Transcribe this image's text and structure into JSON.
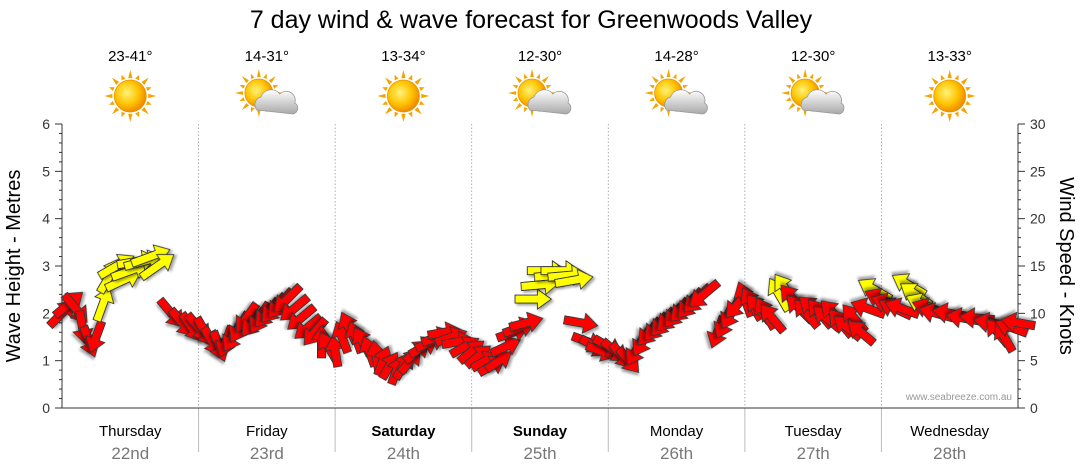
{
  "chart_data": {
    "type": "line",
    "title": "7 day wind & wave forecast for Greenwoods Valley",
    "ylabel_left": "Wave Height - Metres",
    "ylabel_right": "Wind Speed - Knots",
    "ylim_left": [
      0,
      6
    ],
    "ylim_right": [
      0,
      30
    ],
    "yticks_left": [
      "0",
      "1",
      "2",
      "3",
      "4",
      "5",
      "6"
    ],
    "yticks_right": [
      "0",
      "5",
      "10",
      "15",
      "20",
      "25",
      "30"
    ],
    "grid": true,
    "watermark": "www.seabreeze.com.au",
    "days": [
      {
        "name": "Thursday",
        "date": "22nd",
        "temp": "23-41°",
        "weather": "sun-icon",
        "bold": false
      },
      {
        "name": "Friday",
        "date": "23rd",
        "temp": "14-31°",
        "weather": "sun-cloud-icon",
        "bold": false
      },
      {
        "name": "Saturday",
        "date": "24th",
        "temp": "13-34°",
        "weather": "sun-icon",
        "bold": true
      },
      {
        "name": "Sunday",
        "date": "25th",
        "temp": "12-30°",
        "weather": "sun-cloud-icon",
        "bold": true
      },
      {
        "name": "Monday",
        "date": "26th",
        "temp": "14-28°",
        "weather": "sun-cloud-icon",
        "bold": false
      },
      {
        "name": "Tuesday",
        "date": "27th",
        "temp": "12-30°",
        "weather": "sun-cloud-icon",
        "bold": false
      },
      {
        "name": "Wednesday",
        "date": "28th",
        "temp": "13-33°",
        "weather": "sun-icon",
        "bold": false
      }
    ],
    "colors": {
      "strong_wind": "#ff0000",
      "light_wind": "#ffff00",
      "outline": "#333333",
      "grid": "#999999",
      "date": "#777777"
    },
    "series": [
      {
        "type": "wind-arrows",
        "points": [
          {
            "day": 0.0,
            "knots": 10.0,
            "dir": 225,
            "color": "#ff0000"
          },
          {
            "day": 0.05,
            "knots": 11.0,
            "dir": 230,
            "color": "#ff0000"
          },
          {
            "day": 0.1,
            "knots": 10.5,
            "dir": 320,
            "color": "#ff0000"
          },
          {
            "day": 0.15,
            "knots": 8.5,
            "dir": 350,
            "color": "#ff0000"
          },
          {
            "day": 0.2,
            "knots": 7.0,
            "dir": 340,
            "color": "#ff0000"
          },
          {
            "day": 0.25,
            "knots": 7.5,
            "dir": 20,
            "color": "#ff0000"
          },
          {
            "day": 0.3,
            "knots": 11.0,
            "dir": 200,
            "color": "#ffff00"
          },
          {
            "day": 0.35,
            "knots": 14.0,
            "dir": 210,
            "color": "#ffff00"
          },
          {
            "day": 0.4,
            "knots": 15.0,
            "dir": 240,
            "color": "#ffff00"
          },
          {
            "day": 0.45,
            "knots": 13.5,
            "dir": 245,
            "color": "#ffff00"
          },
          {
            "day": 0.5,
            "knots": 14.5,
            "dir": 250,
            "color": "#ffff00"
          },
          {
            "day": 0.55,
            "knots": 15.5,
            "dir": 260,
            "color": "#ffff00"
          },
          {
            "day": 0.6,
            "knots": 15.5,
            "dir": 255,
            "color": "#ffff00"
          },
          {
            "day": 0.65,
            "knots": 16.0,
            "dir": 250,
            "color": "#ffff00"
          },
          {
            "day": 0.7,
            "knots": 15.0,
            "dir": 235,
            "color": "#ffff00"
          },
          {
            "day": 0.8,
            "knots": 10.0,
            "dir": 320,
            "color": "#ff0000"
          },
          {
            "day": 0.88,
            "knots": 9.0,
            "dir": 320,
            "color": "#ff0000"
          },
          {
            "day": 0.95,
            "knots": 8.5,
            "dir": 325,
            "color": "#ff0000"
          },
          {
            "day": 1.0,
            "knots": 8.5,
            "dir": 320,
            "color": "#ff0000"
          },
          {
            "day": 1.05,
            "knots": 8.0,
            "dir": 330,
            "color": "#ff0000"
          },
          {
            "day": 1.1,
            "knots": 7.0,
            "dir": 330,
            "color": "#ff0000"
          },
          {
            "day": 1.15,
            "knots": 6.5,
            "dir": 340,
            "color": "#ff0000"
          },
          {
            "day": 1.2,
            "knots": 7.0,
            "dir": 20,
            "color": "#ff0000"
          },
          {
            "day": 1.25,
            "knots": 7.5,
            "dir": 30,
            "color": "#ff0000"
          },
          {
            "day": 1.3,
            "knots": 8.5,
            "dir": 30,
            "color": "#ff0000"
          },
          {
            "day": 1.35,
            "knots": 9.5,
            "dir": 35,
            "color": "#ff0000"
          },
          {
            "day": 1.4,
            "knots": 9.0,
            "dir": 40,
            "color": "#ff0000"
          },
          {
            "day": 1.45,
            "knots": 9.5,
            "dir": 30,
            "color": "#ff0000"
          },
          {
            "day": 1.5,
            "knots": 10.0,
            "dir": 40,
            "color": "#ff0000"
          },
          {
            "day": 1.55,
            "knots": 10.5,
            "dir": 40,
            "color": "#ff0000"
          },
          {
            "day": 1.6,
            "knots": 11.0,
            "dir": 40,
            "color": "#ff0000"
          },
          {
            "day": 1.65,
            "knots": 11.5,
            "dir": 45,
            "color": "#ff0000"
          },
          {
            "day": 1.7,
            "knots": 10.5,
            "dir": 50,
            "color": "#ff0000"
          },
          {
            "day": 1.75,
            "knots": 9.5,
            "dir": 50,
            "color": "#ff0000"
          },
          {
            "day": 1.8,
            "knots": 8.5,
            "dir": 50,
            "color": "#ff0000"
          },
          {
            "day": 1.85,
            "knots": 8.0,
            "dir": 40,
            "color": "#ff0000"
          },
          {
            "day": 1.9,
            "knots": 7.0,
            "dir": 180,
            "color": "#ff0000"
          },
          {
            "day": 1.95,
            "knots": 6.5,
            "dir": 150,
            "color": "#ff0000"
          },
          {
            "day": 2.0,
            "knots": 6.0,
            "dir": 170,
            "color": "#ff0000"
          },
          {
            "day": 2.05,
            "knots": 7.5,
            "dir": 160,
            "color": "#ff0000"
          },
          {
            "day": 2.1,
            "knots": 8.5,
            "dir": 155,
            "color": "#ff0000"
          },
          {
            "day": 2.15,
            "knots": 7.5,
            "dir": 160,
            "color": "#ff0000"
          },
          {
            "day": 2.2,
            "knots": 7.0,
            "dir": 150,
            "color": "#ff0000"
          },
          {
            "day": 2.25,
            "knots": 6.0,
            "dir": 160,
            "color": "#ff0000"
          },
          {
            "day": 2.3,
            "knots": 5.5,
            "dir": 170,
            "color": "#ff0000"
          },
          {
            "day": 2.35,
            "knots": 5.0,
            "dir": 200,
            "color": "#ff0000"
          },
          {
            "day": 2.4,
            "knots": 4.5,
            "dir": 210,
            "color": "#ff0000"
          },
          {
            "day": 2.45,
            "knots": 4.0,
            "dir": 200,
            "color": "#ff0000"
          },
          {
            "day": 2.5,
            "knots": 4.5,
            "dir": 210,
            "color": "#ff0000"
          },
          {
            "day": 2.55,
            "knots": 5.0,
            "dir": 220,
            "color": "#ff0000"
          },
          {
            "day": 2.6,
            "knots": 6.0,
            "dir": 230,
            "color": "#ff0000"
          },
          {
            "day": 2.65,
            "knots": 6.5,
            "dir": 240,
            "color": "#ff0000"
          },
          {
            "day": 2.7,
            "knots": 7.0,
            "dir": 245,
            "color": "#ff0000"
          },
          {
            "day": 2.75,
            "knots": 7.5,
            "dir": 250,
            "color": "#ff0000"
          },
          {
            "day": 2.8,
            "knots": 8.0,
            "dir": 260,
            "color": "#ff0000"
          },
          {
            "day": 2.85,
            "knots": 7.5,
            "dir": 250,
            "color": "#ff0000"
          },
          {
            "day": 2.9,
            "knots": 7.0,
            "dir": 260,
            "color": "#ff0000"
          },
          {
            "day": 2.95,
            "knots": 6.5,
            "dir": 240,
            "color": "#ff0000"
          },
          {
            "day": 3.0,
            "knots": 6.0,
            "dir": 230,
            "color": "#ff0000"
          },
          {
            "day": 3.05,
            "knots": 5.5,
            "dir": 230,
            "color": "#ff0000"
          },
          {
            "day": 3.1,
            "knots": 5.0,
            "dir": 240,
            "color": "#ff0000"
          },
          {
            "day": 3.15,
            "knots": 4.5,
            "dir": 240,
            "color": "#ff0000"
          },
          {
            "day": 3.2,
            "knots": 5.0,
            "dir": 235,
            "color": "#ff0000"
          },
          {
            "day": 3.25,
            "knots": 6.5,
            "dir": 245,
            "color": "#ff0000"
          },
          {
            "day": 3.3,
            "knots": 8.0,
            "dir": 250,
            "color": "#ff0000"
          },
          {
            "day": 3.35,
            "knots": 8.5,
            "dir": 250,
            "color": "#ff0000"
          },
          {
            "day": 3.4,
            "knots": 9.0,
            "dir": 255,
            "color": "#ff0000"
          },
          {
            "day": 3.45,
            "knots": 11.5,
            "dir": 270,
            "color": "#ffff00"
          },
          {
            "day": 3.5,
            "knots": 13.0,
            "dir": 265,
            "color": "#ffff00"
          },
          {
            "day": 3.55,
            "knots": 14.5,
            "dir": 270,
            "color": "#ffff00"
          },
          {
            "day": 3.6,
            "knots": 14.0,
            "dir": 265,
            "color": "#ffff00"
          },
          {
            "day": 3.65,
            "knots": 14.5,
            "dir": 270,
            "color": "#ffff00"
          },
          {
            "day": 3.7,
            "knots": 14.0,
            "dir": 265,
            "color": "#ffff00"
          },
          {
            "day": 3.75,
            "knots": 13.5,
            "dir": 260,
            "color": "#ffff00"
          },
          {
            "day": 3.8,
            "knots": 9.0,
            "dir": 280,
            "color": "#ff0000"
          },
          {
            "day": 3.85,
            "knots": 7.0,
            "dir": 290,
            "color": "#ff0000"
          },
          {
            "day": 3.9,
            "knots": 6.5,
            "dir": 300,
            "color": "#ff0000"
          },
          {
            "day": 3.95,
            "knots": 6.0,
            "dir": 290,
            "color": "#ff0000"
          },
          {
            "day": 4.0,
            "knots": 6.5,
            "dir": 300,
            "color": "#ff0000"
          },
          {
            "day": 4.05,
            "knots": 6.0,
            "dir": 310,
            "color": "#ff0000"
          },
          {
            "day": 4.1,
            "knots": 5.5,
            "dir": 320,
            "color": "#ff0000"
          },
          {
            "day": 4.15,
            "knots": 5.0,
            "dir": 320,
            "color": "#ff0000"
          },
          {
            "day": 4.2,
            "knots": 6.0,
            "dir": 30,
            "color": "#ff0000"
          },
          {
            "day": 4.25,
            "knots": 7.0,
            "dir": 30,
            "color": "#ff0000"
          },
          {
            "day": 4.3,
            "knots": 8.0,
            "dir": 40,
            "color": "#ff0000"
          },
          {
            "day": 4.35,
            "knots": 8.5,
            "dir": 40,
            "color": "#ff0000"
          },
          {
            "day": 4.4,
            "knots": 9.0,
            "dir": 40,
            "color": "#ff0000"
          },
          {
            "day": 4.45,
            "knots": 9.5,
            "dir": 45,
            "color": "#ff0000"
          },
          {
            "day": 4.5,
            "knots": 10.0,
            "dir": 40,
            "color": "#ff0000"
          },
          {
            "day": 4.55,
            "knots": 10.5,
            "dir": 45,
            "color": "#ff0000"
          },
          {
            "day": 4.6,
            "knots": 11.0,
            "dir": 40,
            "color": "#ff0000"
          },
          {
            "day": 4.65,
            "knots": 11.5,
            "dir": 45,
            "color": "#ff0000"
          },
          {
            "day": 4.7,
            "knots": 12.0,
            "dir": 50,
            "color": "#ff0000"
          },
          {
            "day": 4.8,
            "knots": 8.0,
            "dir": 20,
            "color": "#ff0000"
          },
          {
            "day": 4.85,
            "knots": 9.0,
            "dir": 25,
            "color": "#ff0000"
          },
          {
            "day": 4.9,
            "knots": 10.0,
            "dir": 30,
            "color": "#ff0000"
          },
          {
            "day": 4.95,
            "knots": 11.0,
            "dir": 40,
            "color": "#ff0000"
          },
          {
            "day": 5.0,
            "knots": 11.5,
            "dir": 160,
            "color": "#ff0000"
          },
          {
            "day": 5.05,
            "knots": 11.0,
            "dir": 150,
            "color": "#ff0000"
          },
          {
            "day": 5.1,
            "knots": 10.5,
            "dir": 140,
            "color": "#ff0000"
          },
          {
            "day": 5.15,
            "knots": 10.0,
            "dir": 150,
            "color": "#ff0000"
          },
          {
            "day": 5.2,
            "knots": 9.5,
            "dir": 140,
            "color": "#ff0000"
          },
          {
            "day": 5.25,
            "knots": 12.0,
            "dir": 150,
            "color": "#ffff00"
          },
          {
            "day": 5.3,
            "knots": 12.5,
            "dir": 145,
            "color": "#ffff00"
          },
          {
            "day": 5.35,
            "knots": 11.5,
            "dir": 140,
            "color": "#ff0000"
          },
          {
            "day": 5.4,
            "knots": 10.5,
            "dir": 135,
            "color": "#ff0000"
          },
          {
            "day": 5.45,
            "knots": 10.0,
            "dir": 140,
            "color": "#ff0000"
          },
          {
            "day": 5.5,
            "knots": 10.5,
            "dir": 130,
            "color": "#ff0000"
          },
          {
            "day": 5.55,
            "knots": 10.0,
            "dir": 140,
            "color": "#ff0000"
          },
          {
            "day": 5.6,
            "knots": 9.5,
            "dir": 130,
            "color": "#ff0000"
          },
          {
            "day": 5.65,
            "knots": 10.0,
            "dir": 135,
            "color": "#ff0000"
          },
          {
            "day": 5.7,
            "knots": 9.0,
            "dir": 140,
            "color": "#ff0000"
          },
          {
            "day": 5.75,
            "knots": 8.5,
            "dir": 130,
            "color": "#ff0000"
          },
          {
            "day": 5.8,
            "knots": 9.5,
            "dir": 140,
            "color": "#ff0000"
          },
          {
            "day": 5.85,
            "knots": 8.0,
            "dir": 130,
            "color": "#ff0000"
          },
          {
            "day": 5.9,
            "knots": 10.5,
            "dir": 110,
            "color": "#ff0000"
          },
          {
            "day": 5.95,
            "knots": 12.5,
            "dir": 120,
            "color": "#ffff00"
          },
          {
            "day": 6.0,
            "knots": 11.5,
            "dir": 115,
            "color": "#ff0000"
          },
          {
            "day": 6.05,
            "knots": 11.0,
            "dir": 110,
            "color": "#ff0000"
          },
          {
            "day": 6.1,
            "knots": 10.5,
            "dir": 115,
            "color": "#ff0000"
          },
          {
            "day": 6.15,
            "knots": 10.5,
            "dir": 110,
            "color": "#ff0000"
          },
          {
            "day": 6.2,
            "knots": 13.0,
            "dir": 120,
            "color": "#ffff00"
          },
          {
            "day": 6.25,
            "knots": 12.0,
            "dir": 125,
            "color": "#ffff00"
          },
          {
            "day": 6.3,
            "knots": 11.0,
            "dir": 115,
            "color": "#ffff00"
          },
          {
            "day": 6.35,
            "knots": 10.5,
            "dir": 110,
            "color": "#ff0000"
          },
          {
            "day": 6.4,
            "knots": 10.0,
            "dir": 105,
            "color": "#ff0000"
          },
          {
            "day": 6.5,
            "knots": 10.0,
            "dir": 100,
            "color": "#ff0000"
          },
          {
            "day": 6.6,
            "knots": 9.5,
            "dir": 100,
            "color": "#ff0000"
          },
          {
            "day": 6.7,
            "knots": 9.5,
            "dir": 95,
            "color": "#ff0000"
          },
          {
            "day": 6.8,
            "knots": 9.0,
            "dir": 100,
            "color": "#ff0000"
          },
          {
            "day": 6.85,
            "knots": 8.0,
            "dir": 140,
            "color": "#ff0000"
          },
          {
            "day": 6.9,
            "knots": 7.5,
            "dir": 150,
            "color": "#ff0000"
          },
          {
            "day": 6.95,
            "knots": 8.5,
            "dir": 110,
            "color": "#ff0000"
          },
          {
            "day": 7.0,
            "knots": 9.0,
            "dir": 100,
            "color": "#ff0000"
          }
        ]
      }
    ]
  }
}
